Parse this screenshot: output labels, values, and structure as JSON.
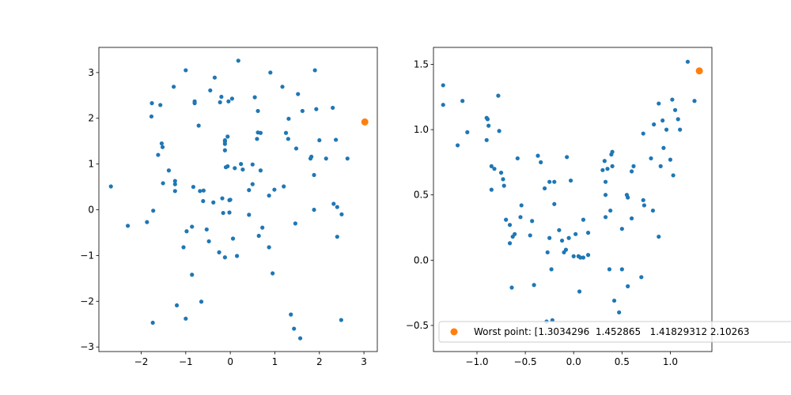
{
  "chart_data": [
    {
      "type": "scatter",
      "xlim": [
        -2.95,
        3.3
      ],
      "ylim": [
        -3.1,
        3.55
      ],
      "xticks": [
        -2,
        -1,
        0,
        1,
        2,
        3
      ],
      "yticks": [
        -3,
        -2,
        -1,
        0,
        1,
        2,
        3
      ],
      "xtick_labels": [
        "−2",
        "−1",
        "0",
        "1",
        "2",
        "3"
      ],
      "ytick_labels": [
        "−3",
        "−2",
        "−1",
        "0",
        "1",
        "2",
        "3"
      ],
      "grid": false,
      "colors": {
        "points": "#1f77b4",
        "highlight": "#ff7f0e"
      },
      "series": [
        {
          "role": "points",
          "points": [
            [
              -2.68,
              0.51
            ],
            [
              -2.3,
              -0.35
            ],
            [
              -1.87,
              -0.27
            ],
            [
              -1.76,
              2.33
            ],
            [
              -1.77,
              2.04
            ],
            [
              -1.73,
              -0.02
            ],
            [
              -1.74,
              -2.47
            ],
            [
              -1.62,
              1.2
            ],
            [
              -1.57,
              2.29
            ],
            [
              -1.54,
              1.45
            ],
            [
              -1.52,
              1.37
            ],
            [
              -1.51,
              0.58
            ],
            [
              -1.38,
              0.86
            ],
            [
              -1.27,
              2.69
            ],
            [
              -1.24,
              0.63
            ],
            [
              -1.24,
              0.56
            ],
            [
              -1.24,
              0.41
            ],
            [
              -1.2,
              -2.09
            ],
            [
              -1.05,
              -0.82
            ],
            [
              -1.0,
              3.05
            ],
            [
              -0.98,
              -0.47
            ],
            [
              -1.0,
              -2.38
            ],
            [
              -0.86,
              -0.37
            ],
            [
              -0.86,
              -1.42
            ],
            [
              -0.83,
              0.5
            ],
            [
              -0.8,
              2.37
            ],
            [
              -0.8,
              2.33
            ],
            [
              -0.71,
              1.84
            ],
            [
              -0.68,
              0.41
            ],
            [
              -0.6,
              0.42
            ],
            [
              -0.61,
              0.19
            ],
            [
              -0.65,
              -2.01
            ],
            [
              -0.53,
              -0.43
            ],
            [
              -0.48,
              -0.69
            ],
            [
              -0.45,
              2.61
            ],
            [
              -0.38,
              0.16
            ],
            [
              -0.35,
              2.89
            ],
            [
              -0.25,
              -0.93
            ],
            [
              -0.23,
              2.35
            ],
            [
              -0.2,
              2.47
            ],
            [
              -0.18,
              0.25
            ],
            [
              -0.16,
              -0.07
            ],
            [
              -0.12,
              -1.04
            ],
            [
              -0.12,
              1.44
            ],
            [
              -0.12,
              1.49
            ],
            [
              -0.12,
              1.52
            ],
            [
              -0.12,
              1.3
            ],
            [
              -0.1,
              0.93
            ],
            [
              -0.06,
              0.95
            ],
            [
              -0.06,
              1.6
            ],
            [
              -0.04,
              2.37
            ],
            [
              -0.02,
              0.21
            ],
            [
              -0.02,
              -0.06
            ],
            [
              0.0,
              0.22
            ],
            [
              0.04,
              2.43
            ],
            [
              0.06,
              -0.63
            ],
            [
              0.1,
              0.91
            ],
            [
              0.15,
              -1.01
            ],
            [
              0.18,
              3.26
            ],
            [
              0.24,
              1.0
            ],
            [
              0.28,
              0.88
            ],
            [
              0.42,
              0.43
            ],
            [
              0.42,
              -0.11
            ],
            [
              0.5,
              0.56
            ],
            [
              0.5,
              0.99
            ],
            [
              0.55,
              2.46
            ],
            [
              0.6,
              1.55
            ],
            [
              0.62,
              2.16
            ],
            [
              0.62,
              1.69
            ],
            [
              0.64,
              -0.57
            ],
            [
              0.68,
              0.86
            ],
            [
              0.68,
              1.68
            ],
            [
              0.72,
              -0.39
            ],
            [
              0.87,
              0.31
            ],
            [
              0.87,
              -0.82
            ],
            [
              0.9,
              3.0
            ],
            [
              0.95,
              -1.39
            ],
            [
              0.99,
              0.44
            ],
            [
              1.17,
              2.69
            ],
            [
              1.2,
              0.51
            ],
            [
              1.25,
              1.68
            ],
            [
              1.3,
              1.55
            ],
            [
              1.31,
              1.99
            ],
            [
              1.36,
              -2.29
            ],
            [
              1.43,
              -2.6
            ],
            [
              1.46,
              -0.3
            ],
            [
              1.48,
              1.34
            ],
            [
              1.52,
              2.53
            ],
            [
              1.57,
              -2.81
            ],
            [
              1.62,
              2.16
            ],
            [
              1.8,
              1.12
            ],
            [
              1.82,
              1.16
            ],
            [
              1.88,
              0.76
            ],
            [
              1.88,
              0.0
            ],
            [
              1.9,
              3.05
            ],
            [
              1.93,
              2.2
            ],
            [
              2.0,
              1.52
            ],
            [
              2.15,
              1.12
            ],
            [
              2.3,
              2.23
            ],
            [
              2.32,
              0.13
            ],
            [
              2.37,
              1.53
            ],
            [
              2.4,
              0.06
            ],
            [
              2.4,
              -0.59
            ],
            [
              2.49,
              -2.41
            ],
            [
              2.5,
              -0.1
            ],
            [
              2.63,
              1.12
            ]
          ]
        },
        {
          "role": "highlight",
          "points": [
            [
              3.02,
              1.92
            ]
          ]
        }
      ]
    },
    {
      "type": "scatter",
      "xlim": [
        -1.45,
        1.43
      ],
      "ylim": [
        -0.7,
        1.63
      ],
      "xticks": [
        -1.0,
        -0.5,
        0.0,
        0.5,
        1.0
      ],
      "yticks": [
        -0.5,
        0.0,
        0.5,
        1.0,
        1.5
      ],
      "xtick_labels": [
        "−1.0",
        "−0.5",
        "0.0",
        "0.5",
        "1.0"
      ],
      "ytick_labels": [
        "−0.5",
        "0.0",
        "0.5",
        "1.0",
        "1.5"
      ],
      "grid": false,
      "legend": {
        "location": "lower-left",
        "entries": [
          {
            "label": "Worst point: [1.3034296  1.452865   1.41829312 2.10263",
            "color": "#ff7f0e"
          }
        ]
      },
      "colors": {
        "points": "#1f77b4",
        "highlight": "#ff7f0e"
      },
      "series": [
        {
          "role": "points",
          "points": [
            [
              -1.35,
              1.34
            ],
            [
              -1.35,
              1.19
            ],
            [
              -1.2,
              0.88
            ],
            [
              -1.15,
              1.22
            ],
            [
              -1.1,
              0.98
            ],
            [
              -0.9,
              1.09
            ],
            [
              -0.89,
              1.08
            ],
            [
              -0.9,
              0.92
            ],
            [
              -0.88,
              1.03
            ],
            [
              -0.85,
              0.72
            ],
            [
              -0.85,
              0.54
            ],
            [
              -0.82,
              0.7
            ],
            [
              -0.78,
              1.26
            ],
            [
              -0.77,
              0.99
            ],
            [
              -0.75,
              0.67
            ],
            [
              -0.73,
              0.62
            ],
            [
              -0.72,
              0.57
            ],
            [
              -0.7,
              0.31
            ],
            [
              -0.66,
              0.27
            ],
            [
              -0.66,
              0.13
            ],
            [
              -0.64,
              -0.21
            ],
            [
              -0.63,
              0.18
            ],
            [
              -0.61,
              0.2
            ],
            [
              -0.58,
              0.78
            ],
            [
              -0.55,
              0.33
            ],
            [
              -0.54,
              0.42
            ],
            [
              -0.45,
              0.19
            ],
            [
              -0.43,
              0.3
            ],
            [
              -0.41,
              -0.19
            ],
            [
              -0.37,
              0.8
            ],
            [
              -0.34,
              0.75
            ],
            [
              -0.3,
              0.55
            ],
            [
              -0.28,
              -0.47
            ],
            [
              -0.27,
              0.06
            ],
            [
              -0.25,
              0.6
            ],
            [
              -0.25,
              0.17
            ],
            [
              -0.23,
              -0.07
            ],
            [
              -0.22,
              -0.46
            ],
            [
              -0.2,
              0.43
            ],
            [
              -0.2,
              0.6
            ],
            [
              -0.15,
              0.23
            ],
            [
              -0.12,
              0.15
            ],
            [
              -0.1,
              0.06
            ],
            [
              -0.08,
              0.08
            ],
            [
              -0.07,
              0.79
            ],
            [
              -0.05,
              0.17
            ],
            [
              -0.03,
              0.61
            ],
            [
              0.0,
              0.03
            ],
            [
              0.02,
              0.2
            ],
            [
              0.05,
              0.03
            ],
            [
              0.06,
              -0.24
            ],
            [
              0.07,
              0.02
            ],
            [
              0.1,
              0.31
            ],
            [
              0.1,
              0.02
            ],
            [
              0.15,
              0.21
            ],
            [
              0.15,
              0.04
            ],
            [
              0.3,
              0.69
            ],
            [
              0.32,
              0.76
            ],
            [
              0.33,
              0.6
            ],
            [
              0.33,
              0.5
            ],
            [
              0.33,
              0.33
            ],
            [
              0.35,
              0.7
            ],
            [
              0.37,
              -0.07
            ],
            [
              0.38,
              0.38
            ],
            [
              0.39,
              0.81
            ],
            [
              0.4,
              0.72
            ],
            [
              0.4,
              0.83
            ],
            [
              0.42,
              -0.31
            ],
            [
              0.47,
              -0.4
            ],
            [
              0.5,
              -0.07
            ],
            [
              0.5,
              0.24
            ],
            [
              0.55,
              0.5
            ],
            [
              0.56,
              0.48
            ],
            [
              0.56,
              -0.2
            ],
            [
              0.6,
              0.68
            ],
            [
              0.6,
              0.32
            ],
            [
              0.62,
              0.72
            ],
            [
              0.7,
              -0.13
            ],
            [
              0.72,
              0.46
            ],
            [
              0.72,
              0.97
            ],
            [
              0.73,
              0.42
            ],
            [
              0.8,
              0.78
            ],
            [
              0.82,
              0.38
            ],
            [
              0.83,
              1.04
            ],
            [
              0.88,
              1.2
            ],
            [
              0.88,
              0.18
            ],
            [
              0.9,
              0.72
            ],
            [
              0.92,
              1.07
            ],
            [
              0.93,
              0.86
            ],
            [
              0.96,
              1.0
            ],
            [
              1.0,
              0.77
            ],
            [
              1.02,
              1.23
            ],
            [
              1.03,
              0.65
            ],
            [
              1.05,
              1.15
            ],
            [
              1.08,
              1.08
            ],
            [
              1.1,
              1.0
            ],
            [
              1.18,
              1.52
            ],
            [
              1.25,
              1.22
            ]
          ]
        },
        {
          "role": "highlight",
          "points": [
            [
              1.3,
              1.45
            ]
          ]
        }
      ]
    }
  ]
}
